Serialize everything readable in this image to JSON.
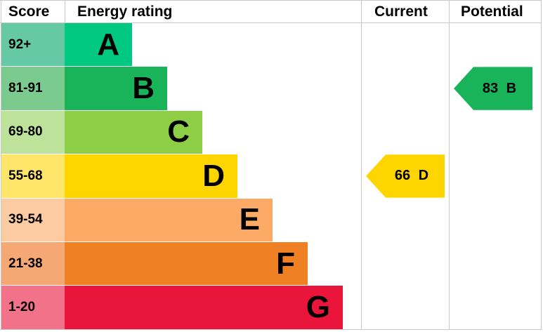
{
  "chart_data": {
    "type": "table",
    "headers": {
      "score": "Score",
      "rating": "Energy rating",
      "current": "Current",
      "potential": "Potential"
    },
    "bands": [
      {
        "letter": "A",
        "range": "92+",
        "color": "#00c781",
        "light": "#66c9a6"
      },
      {
        "letter": "B",
        "range": "81-91",
        "color": "#19b459",
        "light": "#7bcb8e"
      },
      {
        "letter": "C",
        "range": "69-80",
        "color": "#8dce46",
        "light": "#bde39a"
      },
      {
        "letter": "D",
        "range": "55-68",
        "color": "#ffd500",
        "light": "#ffe56a"
      },
      {
        "letter": "E",
        "range": "39-54",
        "color": "#fcaa65",
        "light": "#fdcba2"
      },
      {
        "letter": "F",
        "range": "21-38",
        "color": "#ef8023",
        "light": "#f5a874"
      },
      {
        "letter": "G",
        "range": "1-20",
        "color": "#e9153b",
        "light": "#f2728a"
      }
    ],
    "current": {
      "score": 66,
      "band": "D",
      "label": "66 D",
      "color": "#ffd500"
    },
    "potential": {
      "score": 83,
      "band": "B",
      "label": "83 B",
      "color": "#19b459"
    }
  }
}
